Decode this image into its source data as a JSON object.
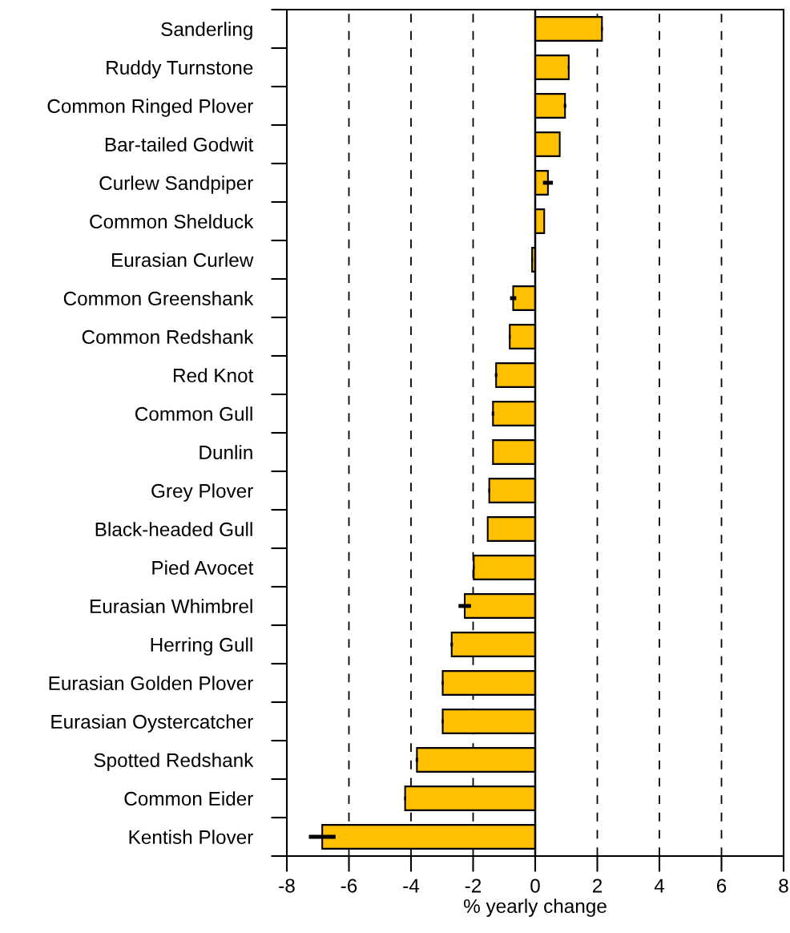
{
  "chart_data": {
    "type": "bar",
    "orientation": "horizontal",
    "xlabel": "% yearly change",
    "categories": [
      "Sanderling",
      "Ruddy Turnstone",
      "Common Ringed Plover",
      "Bar-tailed Godwit",
      "Curlew Sandpiper",
      "Common Shelduck",
      "Eurasian Curlew",
      "Common Greenshank",
      "Common Redshank",
      "Red Knot",
      "Common Gull",
      "Dunlin",
      "Grey Plover",
      "Black-headed Gull",
      "Pied Avocet",
      "Eurasian Whimbrel",
      "Herring Gull",
      "Eurasian Golden Plover",
      "Eurasian Oystercatcher",
      "Spotted Redshank",
      "Common Eider",
      "Kentish Plover"
    ],
    "values": [
      2.15,
      1.08,
      0.96,
      0.79,
      0.41,
      0.29,
      -0.1,
      -0.71,
      -0.82,
      -1.26,
      -1.36,
      -1.36,
      -1.48,
      -1.53,
      -1.98,
      -2.27,
      -2.69,
      -2.98,
      -2.98,
      -3.81,
      -4.19,
      -6.86
    ],
    "errors": [
      0.03,
      0.03,
      0.04,
      null,
      0.16,
      null,
      0.03,
      0.1,
      0.03,
      0.04,
      0.04,
      null,
      0.03,
      null,
      0.03,
      0.2,
      0.04,
      0.03,
      0.03,
      0.04,
      0.03,
      0.43
    ],
    "color": "#ffc000",
    "xlim": [
      -8,
      8
    ],
    "xticks": [
      -8,
      -6,
      -4,
      -2,
      0,
      2,
      4,
      6,
      8
    ],
    "grid": "x",
    "line_style": "dashed",
    "ref_lines": [
      {
        "axis": "x",
        "value": 0,
        "color": "#000000",
        "line_style": "solid"
      }
    ]
  }
}
